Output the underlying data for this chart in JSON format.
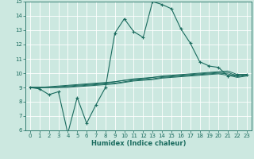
{
  "title": "",
  "xlabel": "Humidex (Indice chaleur)",
  "xlim": [
    -0.5,
    23.5
  ],
  "ylim": [
    6,
    15
  ],
  "xticks": [
    0,
    1,
    2,
    3,
    4,
    5,
    6,
    7,
    8,
    9,
    10,
    11,
    12,
    13,
    14,
    15,
    16,
    17,
    18,
    19,
    20,
    21,
    22,
    23
  ],
  "yticks": [
    6,
    7,
    8,
    9,
    10,
    11,
    12,
    13,
    14,
    15
  ],
  "bg_color": "#cce8e0",
  "line_color": "#1a6b5e",
  "grid_color": "#b0d8d0",
  "line1_y": [
    9.0,
    8.9,
    8.5,
    8.7,
    5.8,
    8.3,
    6.5,
    7.8,
    9.0,
    12.8,
    13.8,
    12.9,
    12.5,
    15.0,
    14.8,
    14.5,
    13.1,
    12.1,
    10.8,
    10.5,
    10.4,
    9.8,
    9.9,
    9.9
  ],
  "line2_y": [
    9.0,
    9.0,
    9.05,
    9.1,
    9.15,
    9.2,
    9.25,
    9.3,
    9.35,
    9.4,
    9.5,
    9.6,
    9.65,
    9.7,
    9.8,
    9.85,
    9.9,
    9.95,
    10.0,
    10.05,
    10.1,
    10.15,
    9.9,
    9.9
  ],
  "line3_y": [
    9.0,
    9.0,
    9.0,
    9.05,
    9.1,
    9.15,
    9.2,
    9.25,
    9.3,
    9.4,
    9.5,
    9.55,
    9.6,
    9.7,
    9.75,
    9.8,
    9.85,
    9.9,
    9.95,
    10.0,
    10.05,
    10.05,
    9.8,
    9.9
  ],
  "line4_y": [
    9.0,
    9.0,
    9.0,
    9.0,
    9.05,
    9.1,
    9.15,
    9.2,
    9.25,
    9.3,
    9.4,
    9.5,
    9.55,
    9.6,
    9.7,
    9.75,
    9.8,
    9.85,
    9.9,
    9.95,
    10.0,
    9.95,
    9.75,
    9.85
  ],
  "line5_y": [
    9.0,
    9.0,
    9.0,
    9.0,
    9.0,
    9.05,
    9.1,
    9.15,
    9.2,
    9.25,
    9.35,
    9.45,
    9.5,
    9.55,
    9.65,
    9.7,
    9.75,
    9.8,
    9.85,
    9.9,
    9.95,
    9.85,
    9.7,
    9.8
  ]
}
